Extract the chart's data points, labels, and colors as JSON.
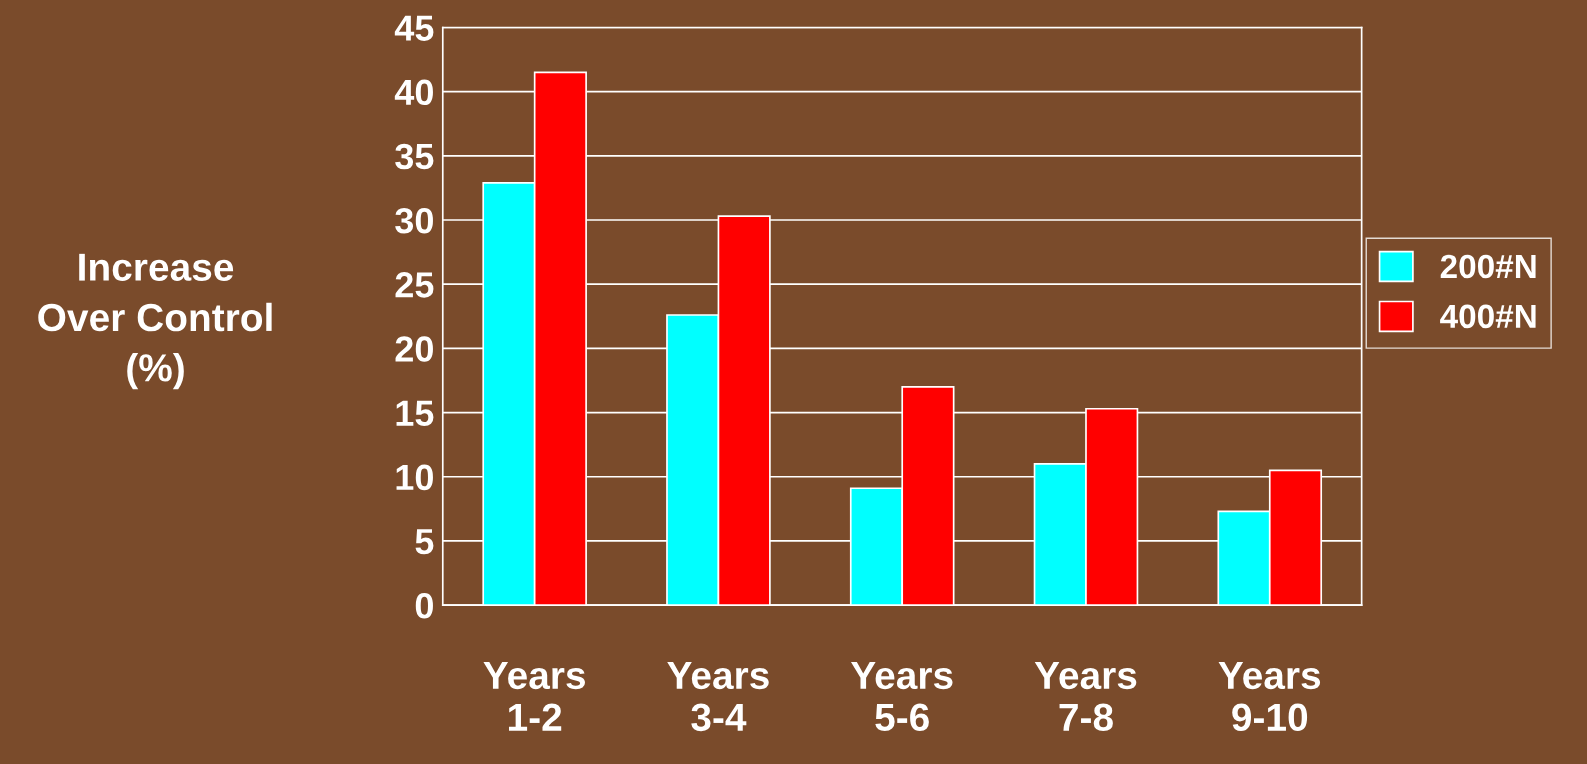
{
  "chart_data": {
    "type": "bar",
    "ylabel": "Increase\nOver Control\n(%)",
    "categories": [
      "Years\n1-2",
      "Years\n3-4",
      "Years\n5-6",
      "Years\n7-8",
      "Years\n9-10"
    ],
    "series": [
      {
        "name": "200#N",
        "color": "#00ffff",
        "values": [
          32.9,
          22.6,
          9.1,
          11.0,
          7.3
        ]
      },
      {
        "name": "400#N",
        "color": "#ff0000",
        "values": [
          41.5,
          30.3,
          17.0,
          15.3,
          10.5
        ]
      }
    ],
    "ylim": [
      0,
      45
    ],
    "yticks": [
      0,
      5,
      10,
      15,
      20,
      25,
      30,
      35,
      40,
      45
    ],
    "grid": "y",
    "legend": "right"
  }
}
